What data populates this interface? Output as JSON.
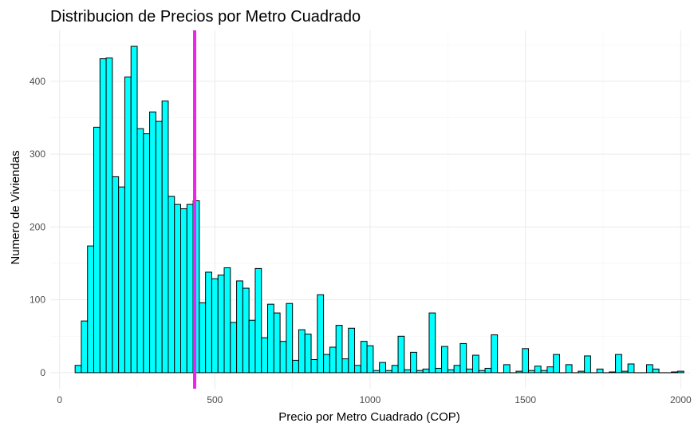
{
  "chart_data": {
    "type": "bar",
    "title": "Distribucion de Precios por Metro Cuadrado",
    "xlabel": "Precio por Metro Cuadrado (COP)",
    "ylabel": "Numero de Viviendas",
    "xlim": [
      -30,
      2030
    ],
    "ylim": [
      -22,
      470
    ],
    "x_ticks": [
      0,
      500,
      1000,
      1500,
      2000
    ],
    "y_ticks": [
      0,
      100,
      200,
      300,
      400
    ],
    "bin_width": 20,
    "bar_color": "#00FFFF",
    "bar_outline": "#000000",
    "reference_line": {
      "x": 435,
      "color": "#EE22EE"
    },
    "grid": true,
    "bins": [
      {
        "x": 60,
        "count": 10
      },
      {
        "x": 80,
        "count": 71
      },
      {
        "x": 100,
        "count": 174
      },
      {
        "x": 120,
        "count": 337
      },
      {
        "x": 140,
        "count": 431
      },
      {
        "x": 160,
        "count": 432
      },
      {
        "x": 180,
        "count": 269
      },
      {
        "x": 200,
        "count": 255
      },
      {
        "x": 220,
        "count": 406
      },
      {
        "x": 240,
        "count": 448
      },
      {
        "x": 260,
        "count": 335
      },
      {
        "x": 280,
        "count": 328
      },
      {
        "x": 300,
        "count": 358
      },
      {
        "x": 320,
        "count": 345
      },
      {
        "x": 340,
        "count": 373
      },
      {
        "x": 360,
        "count": 242
      },
      {
        "x": 380,
        "count": 231
      },
      {
        "x": 400,
        "count": 225
      },
      {
        "x": 420,
        "count": 231
      },
      {
        "x": 440,
        "count": 236
      },
      {
        "x": 460,
        "count": 96
      },
      {
        "x": 480,
        "count": 138
      },
      {
        "x": 500,
        "count": 129
      },
      {
        "x": 520,
        "count": 134
      },
      {
        "x": 540,
        "count": 144
      },
      {
        "x": 560,
        "count": 69
      },
      {
        "x": 580,
        "count": 126
      },
      {
        "x": 600,
        "count": 116
      },
      {
        "x": 620,
        "count": 72
      },
      {
        "x": 640,
        "count": 143
      },
      {
        "x": 660,
        "count": 48
      },
      {
        "x": 680,
        "count": 94
      },
      {
        "x": 700,
        "count": 82
      },
      {
        "x": 720,
        "count": 43
      },
      {
        "x": 740,
        "count": 95
      },
      {
        "x": 760,
        "count": 17
      },
      {
        "x": 780,
        "count": 59
      },
      {
        "x": 800,
        "count": 53
      },
      {
        "x": 820,
        "count": 18
      },
      {
        "x": 840,
        "count": 107
      },
      {
        "x": 860,
        "count": 25
      },
      {
        "x": 880,
        "count": 35
      },
      {
        "x": 900,
        "count": 65
      },
      {
        "x": 920,
        "count": 19
      },
      {
        "x": 940,
        "count": 61
      },
      {
        "x": 960,
        "count": 10
      },
      {
        "x": 980,
        "count": 43
      },
      {
        "x": 1000,
        "count": 37
      },
      {
        "x": 1020,
        "count": 3
      },
      {
        "x": 1040,
        "count": 14
      },
      {
        "x": 1060,
        "count": 3
      },
      {
        "x": 1080,
        "count": 10
      },
      {
        "x": 1100,
        "count": 50
      },
      {
        "x": 1120,
        "count": 4
      },
      {
        "x": 1140,
        "count": 28
      },
      {
        "x": 1160,
        "count": 3
      },
      {
        "x": 1180,
        "count": 5
      },
      {
        "x": 1200,
        "count": 82
      },
      {
        "x": 1220,
        "count": 6
      },
      {
        "x": 1240,
        "count": 36
      },
      {
        "x": 1260,
        "count": 4
      },
      {
        "x": 1280,
        "count": 10
      },
      {
        "x": 1300,
        "count": 40
      },
      {
        "x": 1320,
        "count": 5
      },
      {
        "x": 1340,
        "count": 24
      },
      {
        "x": 1360,
        "count": 3
      },
      {
        "x": 1380,
        "count": 6
      },
      {
        "x": 1400,
        "count": 52
      },
      {
        "x": 1420,
        "count": 0
      },
      {
        "x": 1440,
        "count": 11
      },
      {
        "x": 1460,
        "count": 0
      },
      {
        "x": 1480,
        "count": 2
      },
      {
        "x": 1500,
        "count": 33
      },
      {
        "x": 1520,
        "count": 3
      },
      {
        "x": 1540,
        "count": 9
      },
      {
        "x": 1560,
        "count": 3
      },
      {
        "x": 1580,
        "count": 8
      },
      {
        "x": 1600,
        "count": 25
      },
      {
        "x": 1620,
        "count": 0
      },
      {
        "x": 1640,
        "count": 11
      },
      {
        "x": 1660,
        "count": 0
      },
      {
        "x": 1680,
        "count": 2
      },
      {
        "x": 1700,
        "count": 23
      },
      {
        "x": 1720,
        "count": 0
      },
      {
        "x": 1740,
        "count": 5
      },
      {
        "x": 1760,
        "count": 0
      },
      {
        "x": 1780,
        "count": 1
      },
      {
        "x": 1800,
        "count": 25
      },
      {
        "x": 1820,
        "count": 2
      },
      {
        "x": 1840,
        "count": 12
      },
      {
        "x": 1860,
        "count": 0
      },
      {
        "x": 1880,
        "count": 0
      },
      {
        "x": 1900,
        "count": 11
      },
      {
        "x": 1920,
        "count": 5
      },
      {
        "x": 1940,
        "count": 0
      },
      {
        "x": 1960,
        "count": 0
      },
      {
        "x": 1980,
        "count": 1
      },
      {
        "x": 2000,
        "count": 2
      }
    ]
  }
}
